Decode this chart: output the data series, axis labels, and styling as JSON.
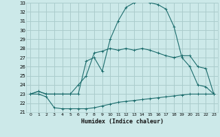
{
  "xlabel": "Humidex (Indice chaleur)",
  "bg_color": "#cce9e9",
  "grid_color": "#aacccc",
  "line_color": "#1a6b6b",
  "xlim": [
    -0.5,
    23.5
  ],
  "ylim": [
    21,
    33
  ],
  "xticks": [
    0,
    1,
    2,
    3,
    4,
    5,
    6,
    7,
    8,
    9,
    10,
    11,
    12,
    13,
    14,
    15,
    16,
    17,
    18,
    19,
    20,
    21,
    22,
    23
  ],
  "yticks": [
    21,
    22,
    23,
    24,
    25,
    26,
    27,
    28,
    29,
    30,
    31,
    32,
    33
  ],
  "line1_x": [
    0,
    1,
    2,
    3,
    4,
    5,
    6,
    7,
    8,
    9,
    10,
    11,
    12,
    13,
    14,
    15,
    16,
    17,
    18,
    19,
    20,
    21,
    22,
    23
  ],
  "line1_y": [
    23.0,
    23.0,
    22.7,
    21.5,
    21.4,
    21.4,
    21.4,
    21.4,
    21.5,
    21.7,
    21.9,
    22.1,
    22.2,
    22.3,
    22.4,
    22.5,
    22.6,
    22.7,
    22.8,
    22.9,
    23.0,
    23.0,
    23.0,
    23.0
  ],
  "line2_x": [
    0,
    1,
    2,
    3,
    4,
    5,
    6,
    7,
    8,
    9,
    10,
    11,
    12,
    13,
    14,
    15,
    16,
    17,
    18,
    19,
    20,
    21,
    22,
    23
  ],
  "line2_y": [
    23.0,
    23.3,
    23.0,
    23.0,
    23.0,
    23.0,
    24.0,
    25.0,
    27.5,
    27.7,
    28.0,
    27.8,
    28.0,
    27.8,
    28.0,
    27.8,
    27.5,
    27.2,
    27.0,
    27.2,
    27.2,
    26.0,
    25.8,
    23.0
  ],
  "line3_x": [
    0,
    1,
    2,
    3,
    4,
    5,
    6,
    7,
    8,
    9,
    10,
    11,
    12,
    13,
    14,
    15,
    16,
    17,
    18,
    19,
    20,
    21,
    22,
    23
  ],
  "line3_y": [
    23.0,
    23.3,
    23.0,
    23.0,
    23.0,
    23.0,
    23.0,
    26.6,
    27.0,
    25.5,
    29.0,
    31.0,
    32.5,
    33.0,
    33.2,
    33.0,
    32.8,
    32.3,
    30.4,
    27.0,
    26.0,
    24.0,
    23.8,
    23.0
  ]
}
